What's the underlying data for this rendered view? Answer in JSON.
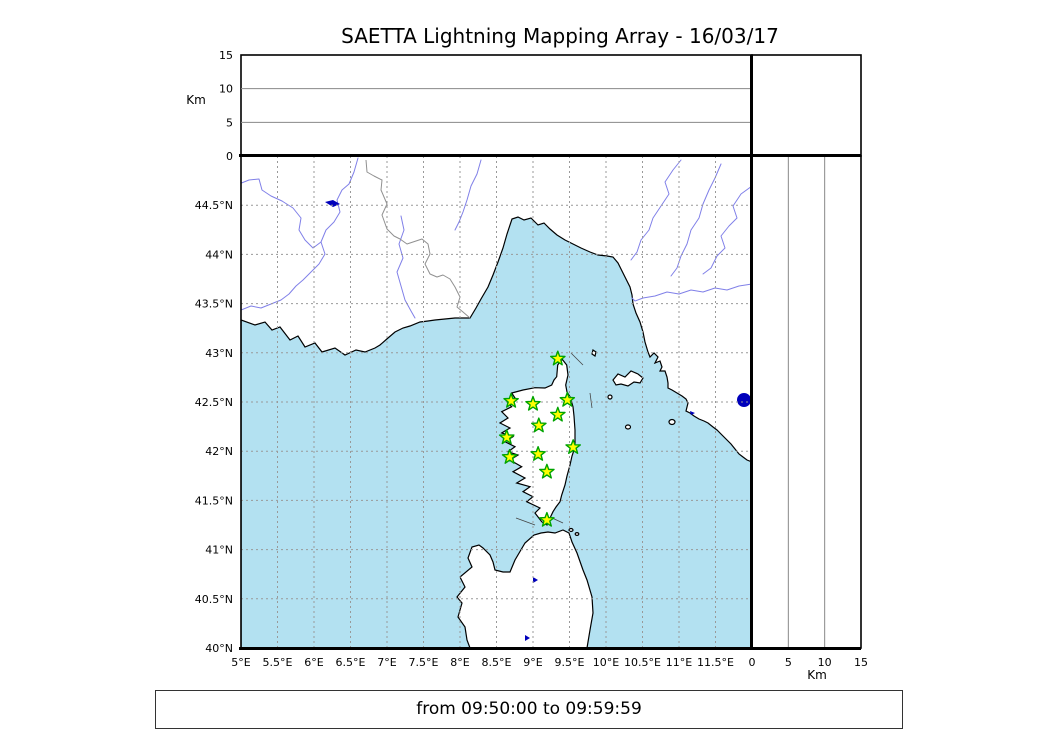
{
  "title": "SAETTA Lightning Mapping Array - 16/03/17",
  "footer": {
    "time_range": "from 09:50:00 to 09:59:59"
  },
  "colors": {
    "sea": "#b3e1f1",
    "land": "#ffffff",
    "coastline": "#000000",
    "river": "#8080e8",
    "country_border": "#909090",
    "graticule": "#999999",
    "lake": "#0000bb",
    "station_fill": "#ffff00",
    "station_edge": "#00a400",
    "alt_gridline": "#888888",
    "panel_border": "#000000"
  },
  "altitude_top_panel": {
    "axis_label": "Km",
    "range_km": [
      0,
      15
    ],
    "ticks": [
      {
        "label": "0",
        "value": 0
      },
      {
        "label": "5",
        "value": 5
      },
      {
        "label": "10",
        "value": 10
      },
      {
        "label": "15",
        "value": 15
      }
    ],
    "gridlines_km": [
      5,
      10
    ]
  },
  "altitude_right_panel": {
    "axis_label": "Km",
    "range_km": [
      0,
      15
    ],
    "ticks": [
      {
        "label": "0",
        "value": 0
      },
      {
        "label": "5",
        "value": 5
      },
      {
        "label": "10",
        "value": 10
      },
      {
        "label": "15",
        "value": 15
      }
    ],
    "gridlines_km": [
      5,
      10
    ]
  },
  "map": {
    "bounds": {
      "lon_min": 5,
      "lon_max": 12,
      "lat_min": 40,
      "lat_max": 45
    },
    "lat_ticks": [
      {
        "label": "44.5°N",
        "value": 44.5
      },
      {
        "label": "44°N",
        "value": 44.0
      },
      {
        "label": "43.5°N",
        "value": 43.5
      },
      {
        "label": "43°N",
        "value": 43.0
      },
      {
        "label": "42.5°N",
        "value": 42.5
      },
      {
        "label": "42°N",
        "value": 42.0
      },
      {
        "label": "41.5°N",
        "value": 41.5
      },
      {
        "label": "41°N",
        "value": 41.0
      },
      {
        "label": "40.5°N",
        "value": 40.5
      },
      {
        "label": "40°N",
        "value": 40.0
      }
    ],
    "lon_ticks": [
      {
        "label": "5°E",
        "value": 5.0
      },
      {
        "label": "5.5°E",
        "value": 5.5
      },
      {
        "label": "6°E",
        "value": 6.0
      },
      {
        "label": "6.5°E",
        "value": 6.5
      },
      {
        "label": "7°E",
        "value": 7.0
      },
      {
        "label": "7.5°E",
        "value": 7.5
      },
      {
        "label": "8°E",
        "value": 8.0
      },
      {
        "label": "8.5°E",
        "value": 8.5
      },
      {
        "label": "9°E",
        "value": 9.0
      },
      {
        "label": "9.5°E",
        "value": 9.5
      },
      {
        "label": "10°E",
        "value": 10.0
      },
      {
        "label": "10.5°E",
        "value": 10.5
      },
      {
        "label": "11°E",
        "value": 11.0
      },
      {
        "label": "11.5°E",
        "value": 11.5
      }
    ],
    "stations": [
      {
        "lon": 9.34,
        "lat": 42.94
      },
      {
        "lon": 8.7,
        "lat": 42.51
      },
      {
        "lon": 9.0,
        "lat": 42.48
      },
      {
        "lon": 9.47,
        "lat": 42.52
      },
      {
        "lon": 9.34,
        "lat": 42.37
      },
      {
        "lon": 9.08,
        "lat": 42.26
      },
      {
        "lon": 8.64,
        "lat": 42.14
      },
      {
        "lon": 9.55,
        "lat": 42.04
      },
      {
        "lon": 9.07,
        "lat": 41.97
      },
      {
        "lon": 8.68,
        "lat": 41.94
      },
      {
        "lon": 9.19,
        "lat": 41.79
      },
      {
        "lon": 9.19,
        "lat": 41.3
      }
    ]
  }
}
